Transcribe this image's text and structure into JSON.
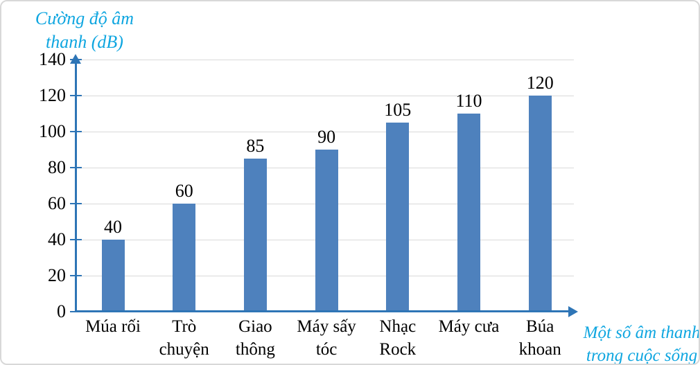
{
  "chart_data": {
    "type": "bar",
    "ylabel": "Cường độ âm thanh (dB)",
    "xlabel": "Một số âm thanh trong cuộc sống",
    "categories": [
      "Múa rối",
      "Trò chuyện",
      "Giao thông",
      "Máy sấy tóc",
      "Nhạc Rock",
      "Máy cưa",
      "Búa khoan"
    ],
    "values": [
      40,
      60,
      85,
      90,
      105,
      110,
      120
    ],
    "yticks": [
      0,
      20,
      40,
      60,
      80,
      100,
      120,
      140
    ],
    "ylim": [
      0,
      140
    ],
    "grid": true,
    "legend": "none",
    "colors": {
      "bar": "#4E81BD",
      "axis": "#2E75B6",
      "grid": "#D9D9D9",
      "axis_title": "#0FA6E0",
      "value_text": "#000000"
    }
  }
}
